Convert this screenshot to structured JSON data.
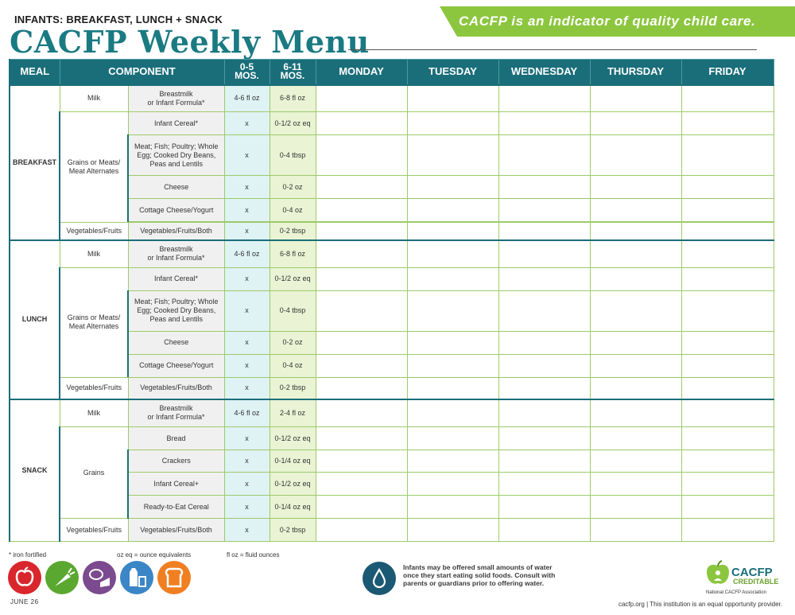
{
  "header": {
    "subtitle": "INFANTS: BREAKFAST, LUNCH + SNACK",
    "title": "CACFP Weekly Menu",
    "banner": "CACFP is an indicator of quality child care."
  },
  "columns": {
    "meal": "MEAL",
    "component": "COMPONENT",
    "age1_line1": "0-5",
    "age1_line2": "MOS.",
    "age2_line1": "6-11",
    "age2_line2": "MOS.",
    "days": [
      "MONDAY",
      "TUESDAY",
      "WEDNESDAY",
      "THURSDAY",
      "FRIDAY"
    ]
  },
  "breakfast": {
    "meal": "BREAKFAST",
    "milk": {
      "group": "Milk",
      "item": "Breastmilk\nor Infant Formula*",
      "age1": "4-6 fl oz",
      "age2": "6-8 fl oz"
    },
    "grains_group": "Grains or Meats/\nMeat Alternates",
    "cereal": {
      "item": "Infant Cereal*",
      "age1": "x",
      "age2": "0-1/2 oz eq"
    },
    "meat": {
      "item": "Meat; Fish; Poultry; Whole Egg; Cooked Dry Beans, Peas and Lentils",
      "age1": "x",
      "age2": "0-4 tbsp"
    },
    "cheese": {
      "item": "Cheese",
      "age1": "x",
      "age2": "0-2 oz"
    },
    "cottage": {
      "item": "Cottage Cheese/Yogurt",
      "age1": "x",
      "age2": "0-4 oz"
    },
    "veg": {
      "group": "Vegetables/Fruits",
      "item": "Vegetables/Fruits/Both",
      "age1": "x",
      "age2": "0-2 tbsp"
    }
  },
  "lunch": {
    "meal": "LUNCH",
    "milk": {
      "group": "Milk",
      "item": "Breastmilk\nor Infant Formula*",
      "age1": "4-6 fl oz",
      "age2": "6-8 fl oz"
    },
    "grains_group": "Grains or Meats/\nMeat Alternates",
    "cereal": {
      "item": "Infant Cereal*",
      "age1": "x",
      "age2": "0-1/2 oz eq"
    },
    "meat": {
      "item": "Meat; Fish; Poultry; Whole Egg; Cooked Dry Beans, Peas and Lentils",
      "age1": "x",
      "age2": "0-4 tbsp"
    },
    "cheese": {
      "item": "Cheese",
      "age1": "x",
      "age2": "0-2 oz"
    },
    "cottage": {
      "item": "Cottage Cheese/Yogurt",
      "age1": "x",
      "age2": "0-4 oz"
    },
    "veg": {
      "group": "Vegetables/Fruits",
      "item": "Vegetables/Fruits/Both",
      "age1": "x",
      "age2": "0-2 tbsp"
    }
  },
  "snack": {
    "meal": "SNACK",
    "milk": {
      "group": "Milk",
      "item": "Breastmilk\nor Infant Formula*",
      "age1": "4-6 fl oz",
      "age2": "2-4 fl oz"
    },
    "grains_group": "Grains",
    "bread": {
      "item": "Bread",
      "age1": "x",
      "age2": "0-1/2 oz eq"
    },
    "crackers": {
      "item": "Crackers",
      "age1": "x",
      "age2": "0-1/4 oz eq"
    },
    "cereal": {
      "item": "Infant Cereal+",
      "age1": "x",
      "age2": "0-1/2 oz eq"
    },
    "rte": {
      "item": "Ready-to-Eat Cereal",
      "age1": "x",
      "age2": "0-1/4 oz eq"
    },
    "veg": {
      "group": "Vegetables/Fruits",
      "item": "Vegetables/Fruits/Both",
      "age1": "x",
      "age2": "0-2 tbsp"
    }
  },
  "footer": {
    "iron_note": "* iron fortified",
    "oz_note": "oz eq = ounce equivalents",
    "floz_note": "fl oz = fluid ounces",
    "water_note": "Infants may be offered small amounts of water once they start eating solid foods. Consult with parents or guardians prior to offering water.",
    "date": "JUNE 26",
    "site": "cacfp.org | This institution is an equal opportunity provider.",
    "logo_name": "CACFP",
    "logo_sub": "CREDITABLE",
    "logo_assoc": "National CACFP Association"
  },
  "icons": [
    "apple-icon",
    "carrot-icon",
    "meat-cheese-icon",
    "milk-icon",
    "bread-icon",
    "water-drop-icon"
  ],
  "colors": {
    "teal": "#1a6e7a",
    "green": "#8cc63f",
    "infant_col": "#dff2f4",
    "older_col": "#eaf3d4"
  }
}
